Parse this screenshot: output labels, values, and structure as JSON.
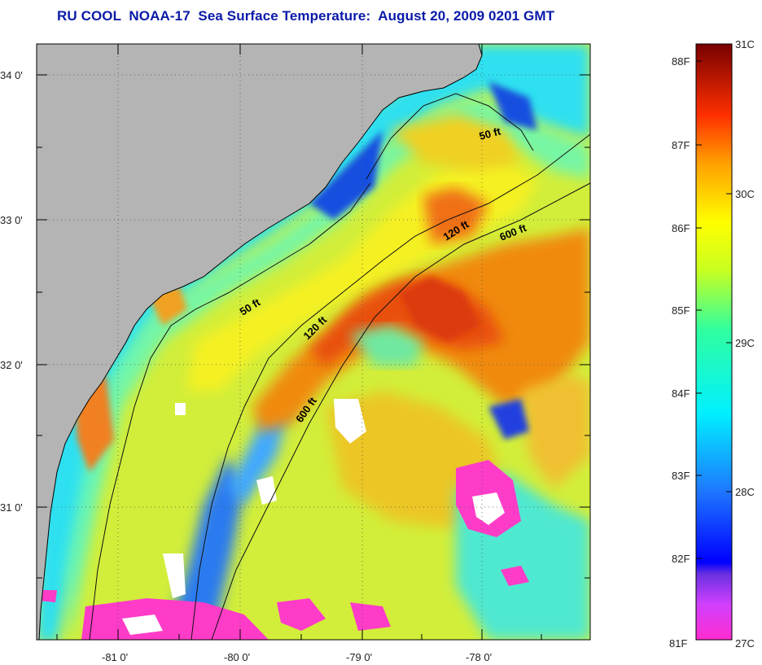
{
  "title": "RU COOL  NOAA-17  Sea Surface Temperature:  August 20, 2009 0201 GMT",
  "latitude_ticks": [
    "34 0'",
    "33 0'",
    "32 0'",
    "31 0'"
  ],
  "longitude_ticks": [
    "-81 0'",
    "-80 0'",
    "-79 0'",
    "-78 0'"
  ],
  "contour_labels": [
    "50 ft",
    "120 ft",
    "600 ft",
    "50 ft",
    "120 ft",
    "600 ft"
  ],
  "colorbar": {
    "fahrenheit": [
      "88F",
      "87F",
      "86F",
      "85F",
      "84F",
      "83F",
      "82F",
      "81F"
    ],
    "celsius": [
      "31C",
      "30C",
      "29C",
      "28C",
      "27C"
    ]
  },
  "colors": {
    "land": "#b4b4b4",
    "title": "#0a1aa8",
    "warm": "#e65a10",
    "cool": "#1ec8f0"
  }
}
